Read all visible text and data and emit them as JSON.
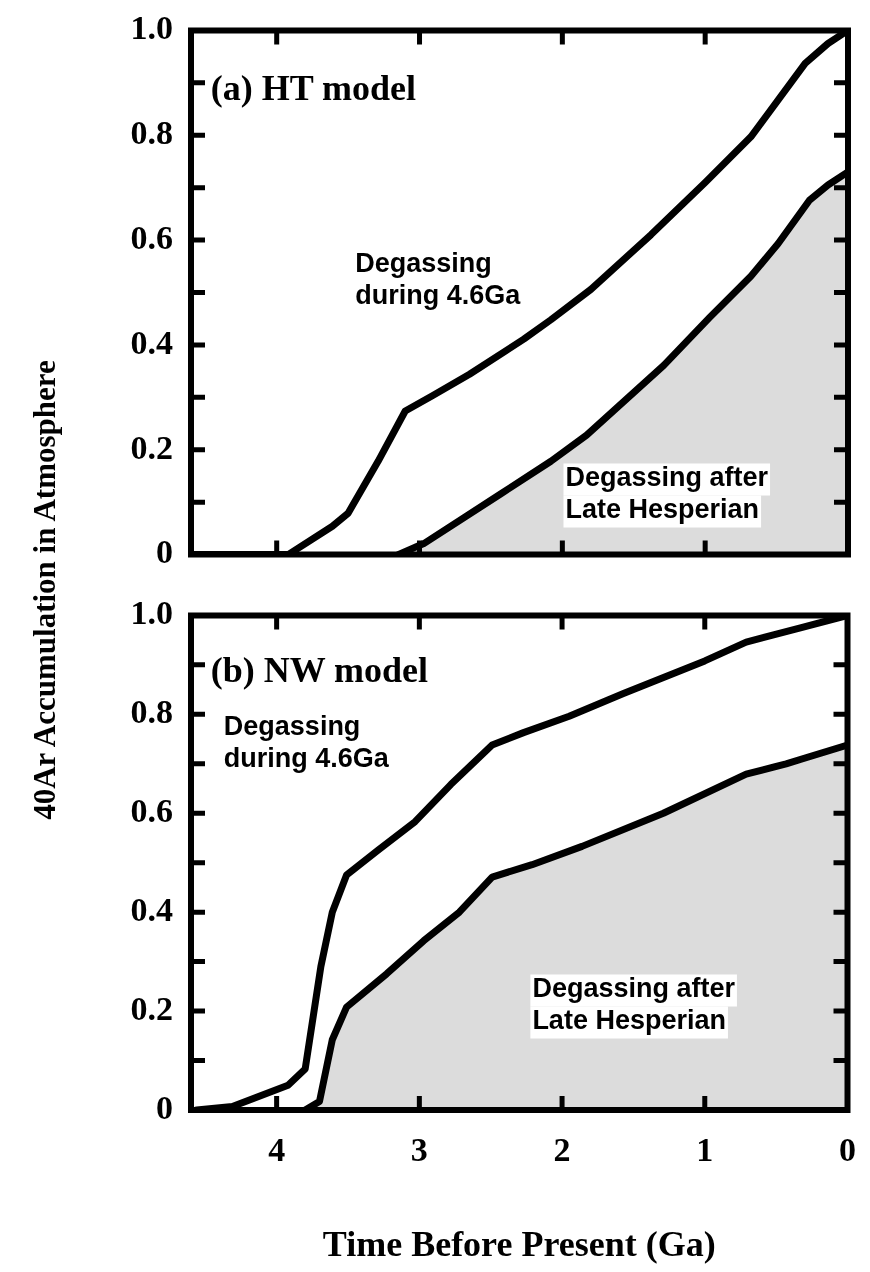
{
  "chart_data": [
    {
      "type": "line",
      "title": "(a) HT model",
      "ylabel": "40Ar Accumulation in Atmosphere",
      "xlim": [
        4.6,
        0
      ],
      "xticks": [
        4,
        3,
        2,
        1,
        0
      ],
      "ylim": [
        0,
        1
      ],
      "yticks": [
        0,
        {
          "value": 0.1,
          "label": null
        },
        0.2,
        {
          "value": 0.3,
          "label": null
        },
        0.4,
        {
          "value": 0.5,
          "label": null
        },
        0.6,
        {
          "value": 0.7,
          "label": null
        },
        0.8,
        {
          "value": 0.9,
          "label": null
        },
        {
          "value": 1,
          "label": "1.0"
        }
      ],
      "tick_labels": "y",
      "grid": false,
      "legend": false,
      "marker": "none",
      "line_style": "solid",
      "annotations": [
        "Degassing\nduring 4.6Ga",
        "Degassing after\nLate Hesperian"
      ],
      "series": [
        {
          "type": "line",
          "color": "#000000",
          "x": [
            4.6,
            3.92,
            3.61,
            3.5,
            3.29,
            3.1,
            2.91,
            2.65,
            2.27,
            2.08,
            1.8,
            1.38,
            1.0,
            0.68,
            0.3,
            0.14,
            0
          ],
          "values": [
            0,
            0,
            0.054,
            0.079,
            0.178,
            0.274,
            0.303,
            0.344,
            0.411,
            0.448,
            0.506,
            0.61,
            0.71,
            0.797,
            0.937,
            0.975,
            1.0
          ]
        },
        {
          "type": "area",
          "color": "#dcdcdc",
          "x": [
            3.15,
            2.97,
            2.43,
            2.08,
            1.83,
            1.29,
            0.97,
            0.68,
            0.49,
            0.27,
            0.14,
            0
          ],
          "values": [
            0,
            0.021,
            0.116,
            0.178,
            0.228,
            0.361,
            0.452,
            0.531,
            0.593,
            0.676,
            0.705,
            0.73
          ]
        }
      ]
    },
    {
      "type": "line",
      "title": "(b) NW model",
      "xlabel": "Time Before Present (Ga)",
      "xlim": [
        4.6,
        0
      ],
      "xticks": [
        4,
        3,
        2,
        1,
        0
      ],
      "ylim": [
        0,
        1
      ],
      "yticks": [
        0,
        {
          "value": 0.1,
          "label": null
        },
        0.2,
        {
          "value": 0.3,
          "label": null
        },
        0.4,
        {
          "value": 0.5,
          "label": null
        },
        0.6,
        {
          "value": 0.7,
          "label": null
        },
        0.8,
        {
          "value": 0.9,
          "label": null
        },
        {
          "value": 1,
          "label": "1.0"
        }
      ],
      "grid": false,
      "legend": false,
      "marker": "none",
      "line_style": "solid",
      "annotations": [
        "Degassing\nduring 4.6Ga",
        "Degassing after\nLate Hesperian"
      ],
      "series": [
        {
          "type": "line",
          "color": "#000000",
          "x": [
            4.56,
            4.31,
            3.92,
            3.8,
            3.69,
            3.61,
            3.51,
            3.29,
            3.03,
            2.78,
            2.49,
            2.27,
            1.95,
            1.57,
            1.0,
            0.71,
            0.33,
            0
          ],
          "values": [
            0,
            0.007,
            0.05,
            0.083,
            0.29,
            0.4,
            0.475,
            0.525,
            0.583,
            0.658,
            0.738,
            0.763,
            0.796,
            0.842,
            0.908,
            0.946,
            0.975,
            1.0
          ]
        },
        {
          "type": "area",
          "color": "#dcdcdc",
          "x": [
            3.8,
            3.7,
            3.61,
            3.51,
            3.23,
            2.97,
            2.72,
            2.49,
            2.21,
            1.86,
            1.29,
            0.71,
            0.43,
            0
          ],
          "values": [
            0,
            0.017,
            0.142,
            0.208,
            0.275,
            0.342,
            0.4,
            0.471,
            0.496,
            0.533,
            0.6,
            0.679,
            0.7,
            0.738
          ]
        }
      ]
    }
  ]
}
